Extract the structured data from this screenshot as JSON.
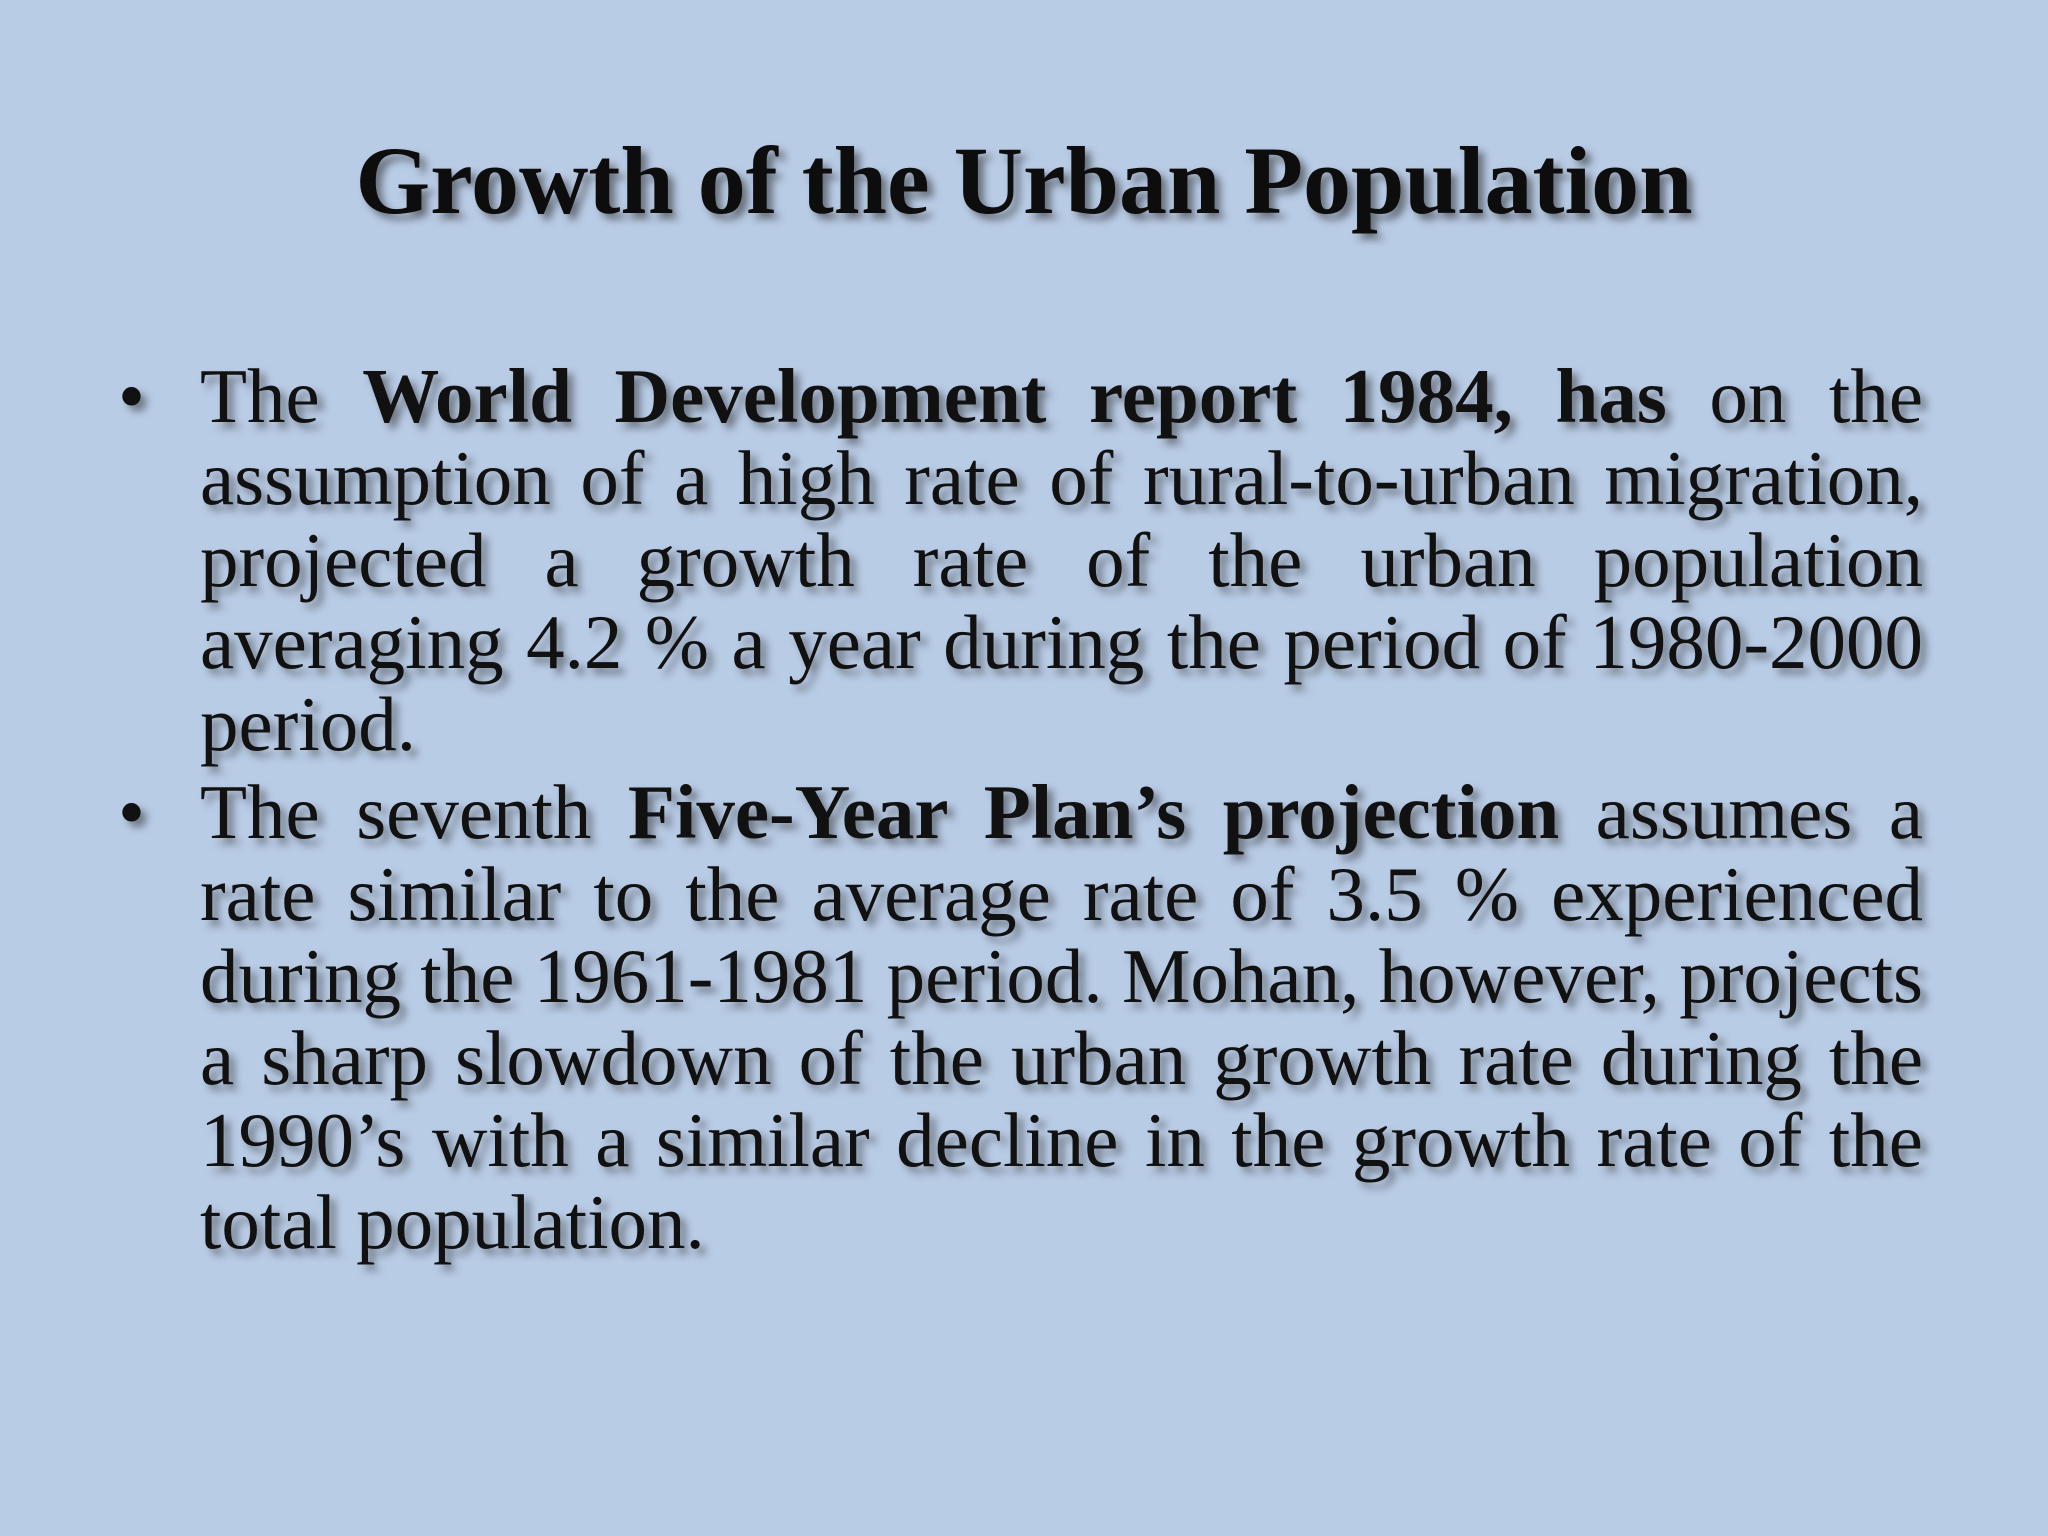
{
  "slide": {
    "title": "Growth of the Urban Population",
    "bullets": [
      {
        "marker": "•",
        "parts": [
          {
            "text": "The ",
            "bold": false
          },
          {
            "text": "World Development report 1984, has",
            "bold": true
          },
          {
            "text": " on the assumption of a high rate of rural-to-urban migration, projected a growth rate of the urban population averaging 4.2 % a year during the period of 1980-2000 period.",
            "bold": false
          }
        ]
      },
      {
        "marker": "•",
        "parts": [
          {
            "text": "The seventh ",
            "bold": false
          },
          {
            "text": "Five-Year Plan’s projection",
            "bold": true
          },
          {
            "text": " assumes a rate similar to the average rate of 3.5 % experienced during the 1961-1981 period. Mohan, however, projects a sharp slowdown of the urban growth rate during the 1990’s with a similar decline in the growth rate of the total population.",
            "bold": false
          }
        ]
      }
    ]
  }
}
